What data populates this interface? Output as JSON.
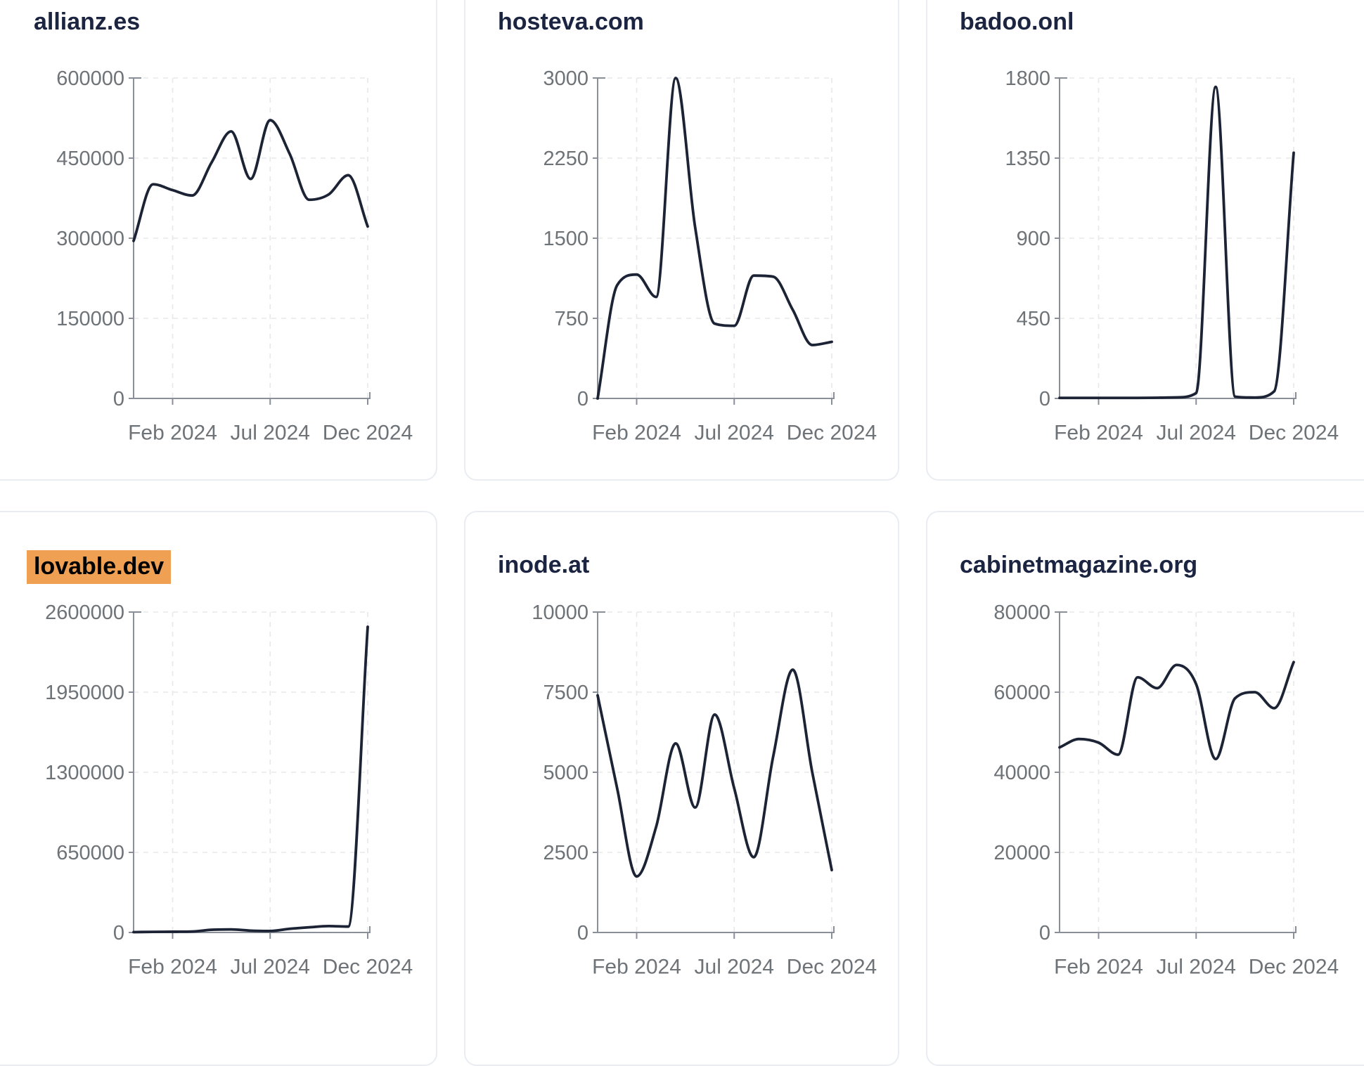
{
  "page": {
    "background": "#ffffff"
  },
  "colors": {
    "line": "#1b2335",
    "axis": "#8b8f98",
    "tick_label": "#6e7378",
    "gridline": "#e7e8ea",
    "card_border": "#e9edf2",
    "title": "#1b2440",
    "highlight_bg": "#f0a052",
    "highlight_text": "#000000"
  },
  "chart_data": [
    {
      "type": "line",
      "title": "allianz.es",
      "highlighted": false,
      "ylim": [
        0,
        600000
      ],
      "y_ticks": [
        0,
        150000,
        300000,
        450000,
        600000
      ],
      "x_tick_labels": [
        "Feb 2024",
        "Jul 2024",
        "Dec 2024"
      ],
      "x_tick_indices": [
        2,
        7,
        12
      ],
      "grid": true,
      "legend": "none",
      "values": [
        295000,
        401000,
        390000,
        380000,
        442000,
        500000,
        411000,
        521000,
        458000,
        372000,
        382000,
        418000,
        322000
      ]
    },
    {
      "type": "line",
      "title": "hosteva.com",
      "highlighted": false,
      "ylim": [
        0,
        3000
      ],
      "y_ticks": [
        0,
        750,
        1500,
        2250,
        3000
      ],
      "x_tick_labels": [
        "Feb 2024",
        "Jul 2024",
        "Dec 2024"
      ],
      "x_tick_indices": [
        2,
        7,
        12
      ],
      "grid": true,
      "legend": "none",
      "values": [
        0,
        1060,
        1160,
        950,
        3000,
        1600,
        700,
        680,
        1150,
        1140,
        830,
        500,
        530
      ]
    },
    {
      "type": "line",
      "title": "badoo.onl",
      "highlighted": false,
      "ylim": [
        0,
        1800
      ],
      "y_ticks": [
        0,
        450,
        900,
        1350,
        1800
      ],
      "x_tick_labels": [
        "Feb 2024",
        "Jul 2024",
        "Dec 2024"
      ],
      "x_tick_indices": [
        2,
        7,
        12
      ],
      "grid": true,
      "legend": "none",
      "values": [
        3,
        3,
        3,
        3,
        3,
        4,
        6,
        30,
        1750,
        10,
        5,
        40,
        1380
      ]
    },
    {
      "type": "line",
      "title": "lovable.dev",
      "highlighted": true,
      "ylim": [
        0,
        2600000
      ],
      "y_ticks": [
        0,
        650000,
        1300000,
        1950000,
        2600000
      ],
      "x_tick_labels": [
        "Feb 2024",
        "Jul 2024",
        "Dec 2024"
      ],
      "x_tick_indices": [
        2,
        7,
        12
      ],
      "grid": true,
      "legend": "none",
      "values": [
        3000,
        5000,
        6000,
        8000,
        22000,
        25000,
        15000,
        12000,
        30000,
        42000,
        52000,
        48000,
        2480000
      ]
    },
    {
      "type": "line",
      "title": "inode.at",
      "highlighted": false,
      "ylim": [
        0,
        10000
      ],
      "y_ticks": [
        0,
        2500,
        5000,
        7500,
        10000
      ],
      "x_tick_labels": [
        "Feb 2024",
        "Jul 2024",
        "Dec 2024"
      ],
      "x_tick_indices": [
        2,
        7,
        12
      ],
      "grid": true,
      "legend": "none",
      "values": [
        7400,
        4500,
        1750,
        3300,
        5900,
        3900,
        6800,
        4500,
        2350,
        5500,
        8200,
        5000,
        1950
      ]
    },
    {
      "type": "line",
      "title": "cabinetmagazine.org",
      "highlighted": false,
      "ylim": [
        0,
        80000
      ],
      "y_ticks": [
        0,
        20000,
        40000,
        60000,
        80000
      ],
      "x_tick_labels": [
        "Feb 2024",
        "Jul 2024",
        "Dec 2024"
      ],
      "x_tick_indices": [
        2,
        7,
        12
      ],
      "grid": true,
      "legend": "none",
      "values": [
        46200,
        48300,
        47400,
        44400,
        63700,
        61000,
        66800,
        62000,
        43300,
        58500,
        60000,
        56000,
        67500
      ]
    }
  ]
}
